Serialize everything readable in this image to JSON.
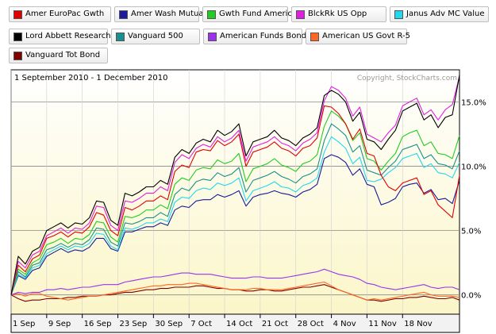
{
  "chart_data": {
    "type": "line",
    "date_range": "1 September 2010 - 1 December 2010",
    "copyright": "Copyright, StockCharts.com",
    "x": [
      "2010-09-01",
      "2010-09-02",
      "2010-09-03",
      "2010-09-07",
      "2010-09-08",
      "2010-09-09",
      "2010-09-10",
      "2010-09-13",
      "2010-09-14",
      "2010-09-15",
      "2010-09-16",
      "2010-09-17",
      "2010-09-20",
      "2010-09-21",
      "2010-09-22",
      "2010-09-23",
      "2010-09-24",
      "2010-09-27",
      "2010-09-28",
      "2010-09-29",
      "2010-09-30",
      "2010-10-01",
      "2010-10-04",
      "2010-10-05",
      "2010-10-06",
      "2010-10-07",
      "2010-10-08",
      "2010-10-11",
      "2010-10-12",
      "2010-10-13",
      "2010-10-14",
      "2010-10-15",
      "2010-10-18",
      "2010-10-19",
      "2010-10-20",
      "2010-10-21",
      "2010-10-22",
      "2010-10-25",
      "2010-10-26",
      "2010-10-27",
      "2010-10-28",
      "2010-10-29",
      "2010-11-01",
      "2010-11-02",
      "2010-11-03",
      "2010-11-04",
      "2010-11-05",
      "2010-11-08",
      "2010-11-09",
      "2010-11-10",
      "2010-11-11",
      "2010-11-12",
      "2010-11-15",
      "2010-11-16",
      "2010-11-17",
      "2010-11-18",
      "2010-11-19",
      "2010-11-22",
      "2010-11-23",
      "2010-11-24",
      "2010-11-26",
      "2010-11-29",
      "2010-11-30",
      "2010-12-01"
    ],
    "x_ticks": [
      {
        "label": "1 Sep",
        "x": "2010-09-01"
      },
      {
        "label": "9 Sep",
        "x": "2010-09-09"
      },
      {
        "label": "16 Sep",
        "x": "2010-09-16"
      },
      {
        "label": "23 Sep",
        "x": "2010-09-23"
      },
      {
        "label": "30 Sep",
        "x": "2010-09-30"
      },
      {
        "label": "7 Oct",
        "x": "2010-10-07"
      },
      {
        "label": "14 Oct",
        "x": "2010-10-14"
      },
      {
        "label": "21 Oct",
        "x": "2010-10-21"
      },
      {
        "label": "28 Oct",
        "x": "2010-10-28"
      },
      {
        "label": "4 Nov",
        "x": "2010-11-04"
      },
      {
        "label": "11 Nov",
        "x": "2010-11-11"
      },
      {
        "label": "18 Nov",
        "x": "2010-11-18"
      }
    ],
    "y_ticks": [
      {
        "label": "0.0%",
        "value": 0
      },
      {
        "label": "5.0%",
        "value": 5
      },
      {
        "label": "10.0%",
        "value": 10
      },
      {
        "label": "15.0%",
        "value": 15
      }
    ],
    "ylim": [
      -1.5,
      17.5
    ],
    "grid": true,
    "legend_position": "top",
    "series": [
      {
        "name": "Amer EuroPac Gwth",
        "color": "#e00000",
        "values": [
          0,
          2.3,
          1.8,
          2.8,
          3.1,
          4.4,
          4.6,
          4.9,
          4.5,
          4.9,
          4.8,
          5.3,
          6.4,
          6.2,
          5.0,
          4.6,
          6.8,
          6.6,
          6.9,
          7.3,
          7.3,
          7.7,
          7.4,
          9.6,
          10.1,
          9.9,
          11.1,
          11.3,
          11.2,
          12.0,
          11.6,
          11.9,
          12.5,
          10.0,
          11.1,
          11.3,
          11.5,
          11.9,
          11.4,
          11.2,
          10.8,
          11.4,
          11.6,
          12.2,
          14.7,
          14.6,
          14.1,
          13.3,
          12.1,
          12.9,
          11.0,
          10.8,
          9.3,
          8.4,
          8.1,
          8.7,
          8.9,
          9.1,
          7.8,
          8.1,
          7.0,
          6.5,
          6.0,
          9.3
        ]
      },
      {
        "name": "Amer Wash Mutual",
        "color": "#1a1a9a",
        "values": [
          0,
          1.5,
          1.2,
          1.9,
          2.1,
          3.0,
          3.3,
          3.6,
          3.3,
          3.5,
          3.4,
          3.7,
          4.4,
          4.4,
          3.6,
          3.4,
          4.9,
          4.9,
          5.1,
          5.3,
          5.3,
          5.6,
          5.4,
          6.6,
          6.9,
          6.8,
          7.3,
          7.4,
          7.4,
          7.8,
          7.6,
          7.8,
          8.1,
          6.9,
          7.6,
          7.8,
          7.9,
          8.1,
          7.9,
          7.8,
          7.6,
          8.0,
          8.2,
          8.6,
          10.6,
          10.9,
          10.7,
          10.3,
          9.3,
          9.8,
          8.6,
          8.4,
          7.0,
          7.2,
          7.5,
          8.4,
          8.6,
          8.7,
          7.9,
          8.2,
          7.4,
          7.5,
          7.1,
          8.9
        ]
      },
      {
        "name": "Gwth Fund America",
        "color": "#22cc22",
        "values": [
          0,
          2.0,
          1.6,
          2.5,
          2.8,
          3.9,
          4.1,
          4.4,
          4.0,
          4.4,
          4.3,
          4.7,
          5.7,
          5.6,
          4.5,
          4.1,
          6.1,
          6.0,
          6.2,
          6.6,
          6.6,
          7.0,
          6.7,
          8.6,
          9.1,
          8.9,
          9.7,
          9.9,
          9.8,
          10.5,
          10.2,
          10.4,
          11.0,
          8.8,
          9.8,
          10.0,
          10.2,
          10.6,
          10.1,
          9.9,
          9.6,
          10.2,
          10.4,
          10.9,
          13.1,
          14.3,
          13.9,
          13.3,
          12.0,
          12.6,
          10.6,
          10.4,
          9.7,
          10.4,
          11.0,
          12.3,
          12.6,
          12.8,
          11.6,
          11.9,
          11.0,
          10.9,
          10.6,
          12.4
        ]
      },
      {
        "name": "BlckRk US Opp",
        "color": "#e020e0",
        "values": [
          0,
          2.6,
          2.1,
          3.1,
          3.4,
          4.6,
          4.9,
          5.2,
          4.8,
          5.2,
          5.1,
          5.6,
          6.9,
          6.8,
          5.4,
          5.0,
          7.3,
          7.2,
          7.5,
          7.9,
          7.9,
          8.4,
          8.1,
          10.3,
          10.9,
          10.6,
          11.4,
          11.7,
          11.5,
          12.3,
          11.9,
          12.2,
          12.8,
          10.4,
          11.5,
          11.7,
          11.9,
          12.3,
          11.8,
          11.6,
          11.2,
          11.8,
          12.1,
          12.6,
          15.1,
          16.2,
          15.9,
          15.3,
          13.9,
          14.6,
          12.5,
          12.2,
          11.9,
          12.6,
          13.2,
          14.7,
          15.0,
          15.3,
          14.0,
          14.4,
          13.6,
          14.4,
          14.8,
          17.0
        ]
      },
      {
        "name": "Janus Adv MC Value",
        "color": "#22d8ee",
        "values": [
          0,
          1.6,
          1.3,
          2.1,
          2.3,
          3.2,
          3.5,
          3.8,
          3.5,
          3.8,
          3.7,
          4.0,
          4.8,
          4.7,
          3.8,
          3.5,
          5.2,
          5.1,
          5.3,
          5.6,
          5.6,
          5.9,
          5.7,
          7.2,
          7.6,
          7.5,
          8.1,
          8.3,
          8.2,
          8.7,
          8.5,
          8.7,
          9.1,
          7.3,
          8.1,
          8.3,
          8.5,
          8.8,
          8.4,
          8.3,
          8.0,
          8.5,
          8.7,
          9.1,
          11.1,
          12.3,
          11.9,
          11.4,
          10.2,
          10.7,
          8.9,
          8.8,
          9.0,
          9.5,
          9.9,
          10.6,
          10.8,
          11.0,
          9.9,
          10.2,
          9.5,
          9.4,
          9.1,
          10.3
        ]
      },
      {
        "name": "Lord Abbett Research",
        "color": "#000000",
        "values": [
          0,
          3.0,
          2.4,
          3.4,
          3.7,
          5.0,
          5.3,
          5.6,
          5.2,
          5.6,
          5.5,
          6.0,
          7.3,
          7.2,
          5.8,
          5.4,
          7.9,
          7.7,
          8.0,
          8.4,
          8.4,
          8.9,
          8.6,
          10.7,
          11.3,
          11.0,
          11.8,
          12.1,
          11.9,
          12.8,
          12.4,
          12.7,
          13.3,
          10.8,
          11.9,
          12.1,
          12.3,
          12.8,
          12.2,
          12.0,
          11.6,
          12.2,
          12.5,
          13.0,
          15.5,
          15.9,
          15.6,
          15.0,
          13.5,
          14.2,
          12.1,
          11.9,
          11.3,
          12.1,
          12.8,
          14.3,
          14.6,
          14.9,
          13.6,
          14.0,
          13.0,
          13.8,
          14.0,
          17.1
        ]
      },
      {
        "name": "Vanguard 500",
        "color": "#1a8f8f",
        "values": [
          0,
          1.8,
          1.4,
          2.3,
          2.5,
          3.5,
          3.7,
          4.0,
          3.7,
          4.0,
          3.9,
          4.3,
          5.2,
          5.1,
          4.1,
          3.8,
          5.6,
          5.5,
          5.7,
          6.0,
          6.0,
          6.4,
          6.1,
          7.8,
          8.3,
          8.1,
          8.8,
          9.0,
          8.9,
          9.5,
          9.2,
          9.4,
          9.9,
          8.0,
          8.9,
          9.1,
          9.3,
          9.6,
          9.2,
          9.0,
          8.7,
          9.2,
          9.4,
          9.8,
          12.0,
          13.3,
          12.9,
          12.4,
          11.1,
          11.6,
          9.7,
          9.5,
          9.3,
          9.9,
          10.4,
          11.3,
          11.5,
          11.7,
          10.6,
          10.9,
          10.2,
          10.1,
          9.8,
          11.2
        ]
      },
      {
        "name": "American Funds Bond",
        "color": "#9933ee",
        "values": [
          0,
          0.2,
          0.1,
          0.2,
          0.2,
          0.4,
          0.4,
          0.5,
          0.4,
          0.5,
          0.6,
          0.6,
          0.7,
          0.8,
          0.8,
          0.8,
          1.0,
          1.1,
          1.2,
          1.3,
          1.4,
          1.4,
          1.5,
          1.6,
          1.7,
          1.7,
          1.6,
          1.6,
          1.6,
          1.5,
          1.4,
          1.3,
          1.3,
          1.3,
          1.4,
          1.4,
          1.3,
          1.3,
          1.3,
          1.4,
          1.5,
          1.6,
          1.7,
          1.8,
          2.0,
          1.8,
          1.6,
          1.5,
          1.4,
          1.2,
          0.9,
          0.8,
          0.6,
          0.5,
          0.4,
          0.5,
          0.6,
          0.7,
          0.8,
          0.6,
          0.5,
          0.6,
          0.6,
          0.4
        ]
      },
      {
        "name": "American US Govt R-5",
        "color": "#ff6622",
        "values": [
          0,
          0.1,
          -0.1,
          0.1,
          0.1,
          -0.1,
          -0.2,
          -0.3,
          -0.4,
          -0.3,
          -0.2,
          -0.1,
          -0.1,
          0,
          0.1,
          0.2,
          0.3,
          0.4,
          0.5,
          0.6,
          0.7,
          0.7,
          0.8,
          0.8,
          0.8,
          0.9,
          0.9,
          0.8,
          0.7,
          0.6,
          0.5,
          0.4,
          0.4,
          0.4,
          0.5,
          0.5,
          0.4,
          0.4,
          0.4,
          0.5,
          0.6,
          0.7,
          0.8,
          0.9,
          1.0,
          0.7,
          0.4,
          0.2,
          0,
          -0.2,
          -0.4,
          -0.3,
          -0.4,
          -0.3,
          -0.2,
          -0.1,
          0,
          0.1,
          0.2,
          0,
          -0.1,
          -0.1,
          -0.1,
          -0.2
        ]
      },
      {
        "name": "Vanguard Tot Bond",
        "color": "#800000",
        "values": [
          0,
          -0.3,
          -0.5,
          -0.4,
          -0.4,
          -0.3,
          -0.3,
          -0.3,
          -0.2,
          -0.2,
          -0.1,
          -0.1,
          -0.1,
          0,
          0,
          0.1,
          0.2,
          0.2,
          0.3,
          0.4,
          0.4,
          0.5,
          0.5,
          0.6,
          0.6,
          0.6,
          0.7,
          0.7,
          0.6,
          0.5,
          0.5,
          0.4,
          0.4,
          0.3,
          0.3,
          0.4,
          0.4,
          0.3,
          0.3,
          0.4,
          0.5,
          0.6,
          0.6,
          0.7,
          0.8,
          0.6,
          0.4,
          0.2,
          0,
          -0.2,
          -0.4,
          -0.4,
          -0.5,
          -0.4,
          -0.3,
          -0.3,
          -0.2,
          -0.2,
          -0.1,
          -0.2,
          -0.3,
          -0.3,
          -0.2,
          -0.4
        ]
      }
    ]
  }
}
